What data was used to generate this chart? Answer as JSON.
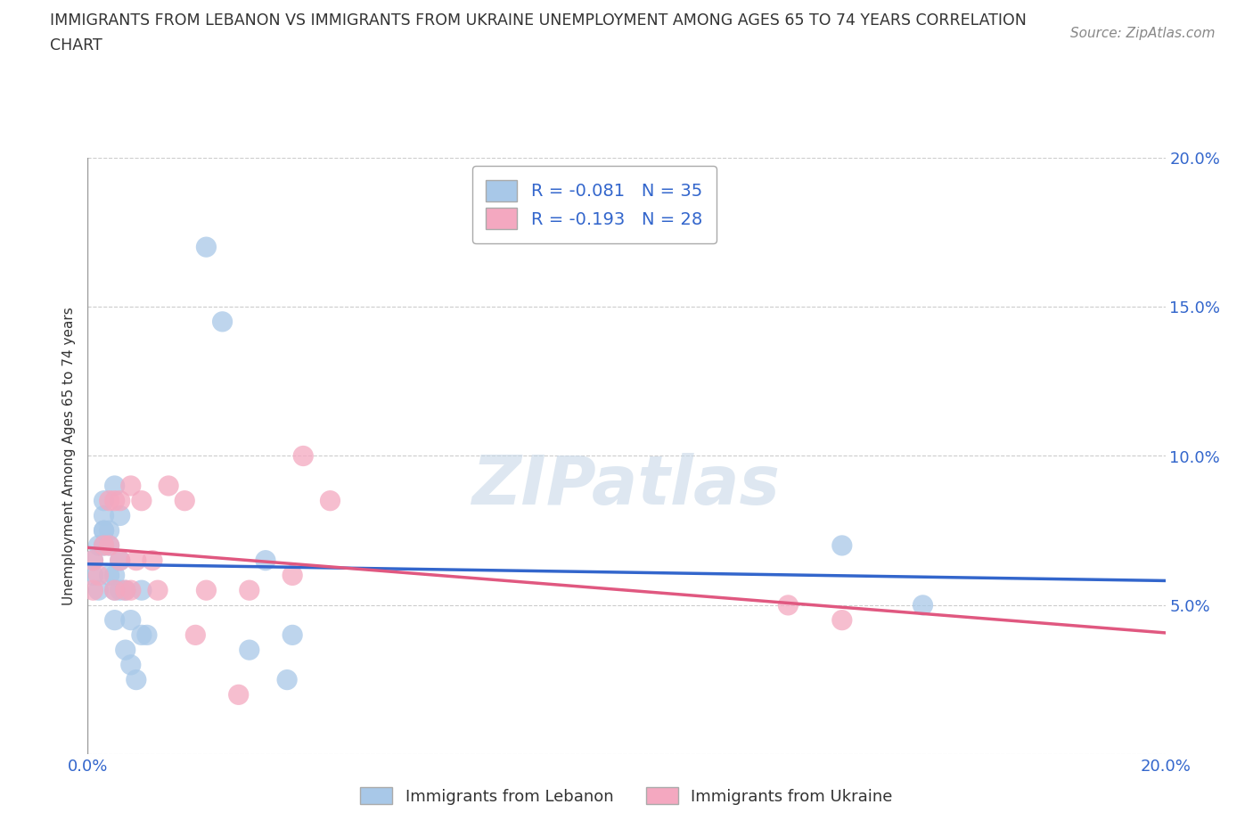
{
  "title_line1": "IMMIGRANTS FROM LEBANON VS IMMIGRANTS FROM UKRAINE UNEMPLOYMENT AMONG AGES 65 TO 74 YEARS CORRELATION",
  "title_line2": "CHART",
  "source": "Source: ZipAtlas.com",
  "ylabel": "Unemployment Among Ages 65 to 74 years",
  "xlabel": "",
  "xlim": [
    0.0,
    0.2
  ],
  "ylim": [
    0.0,
    0.2
  ],
  "xtick_positions": [
    0.0,
    0.05,
    0.1,
    0.15,
    0.2
  ],
  "xtick_labels": [
    "0.0%",
    "",
    "",
    "",
    "20.0%"
  ],
  "ytick_positions": [
    0.0,
    0.05,
    0.1,
    0.15,
    0.2
  ],
  "ytick_labels": [
    "",
    "5.0%",
    "10.0%",
    "15.0%",
    "20.0%"
  ],
  "lebanon_R": -0.081,
  "lebanon_N": 35,
  "ukraine_R": -0.193,
  "ukraine_N": 28,
  "lebanon_color": "#a8c8e8",
  "ukraine_color": "#f4a8c0",
  "lebanon_line_color": "#3366cc",
  "ukraine_line_color": "#e05880",
  "watermark": "ZIPatlas",
  "lebanon_x": [
    0.001,
    0.001,
    0.002,
    0.002,
    0.003,
    0.003,
    0.003,
    0.003,
    0.003,
    0.004,
    0.004,
    0.004,
    0.005,
    0.005,
    0.005,
    0.005,
    0.006,
    0.006,
    0.006,
    0.007,
    0.007,
    0.008,
    0.008,
    0.009,
    0.01,
    0.01,
    0.011,
    0.022,
    0.025,
    0.03,
    0.033,
    0.037,
    0.038,
    0.14,
    0.155
  ],
  "lebanon_y": [
    0.06,
    0.065,
    0.055,
    0.07,
    0.07,
    0.075,
    0.075,
    0.08,
    0.085,
    0.06,
    0.07,
    0.075,
    0.045,
    0.055,
    0.06,
    0.09,
    0.055,
    0.065,
    0.08,
    0.035,
    0.055,
    0.03,
    0.045,
    0.025,
    0.04,
    0.055,
    0.04,
    0.17,
    0.145,
    0.035,
    0.065,
    0.025,
    0.04,
    0.07,
    0.05
  ],
  "ukraine_x": [
    0.001,
    0.001,
    0.002,
    0.003,
    0.004,
    0.004,
    0.005,
    0.005,
    0.006,
    0.006,
    0.007,
    0.008,
    0.008,
    0.009,
    0.01,
    0.012,
    0.013,
    0.015,
    0.018,
    0.02,
    0.022,
    0.028,
    0.03,
    0.038,
    0.04,
    0.045,
    0.13,
    0.14
  ],
  "ukraine_y": [
    0.055,
    0.065,
    0.06,
    0.07,
    0.07,
    0.085,
    0.055,
    0.085,
    0.065,
    0.085,
    0.055,
    0.055,
    0.09,
    0.065,
    0.085,
    0.065,
    0.055,
    0.09,
    0.085,
    0.04,
    0.055,
    0.02,
    0.055,
    0.06,
    0.1,
    0.085,
    0.05,
    0.045
  ]
}
